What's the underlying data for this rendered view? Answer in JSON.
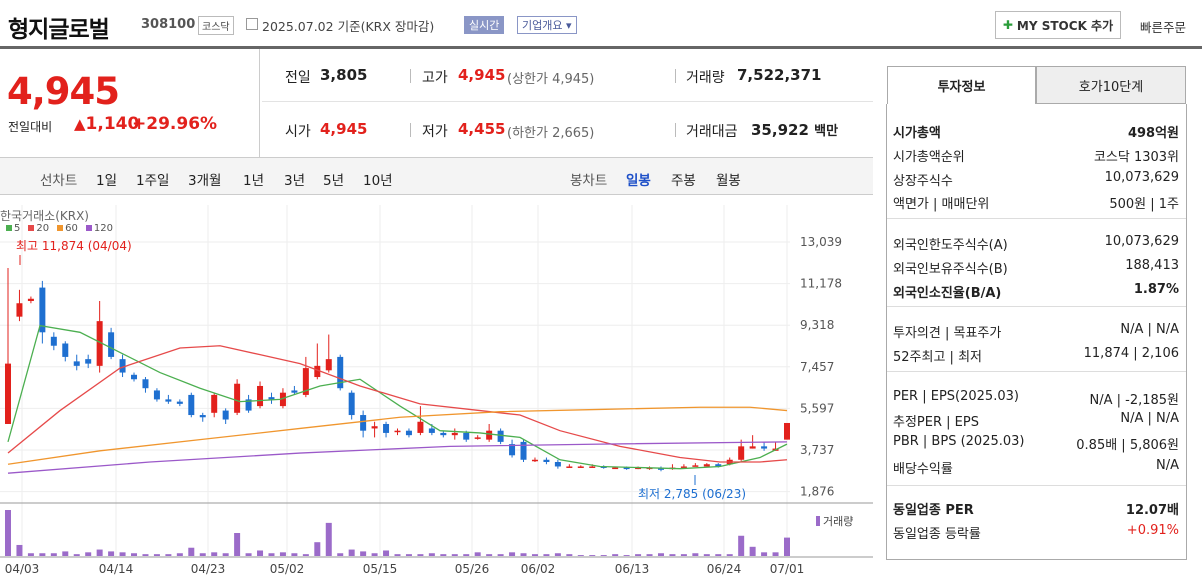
{
  "header": {
    "name": "형지글로벌",
    "code": "308100",
    "market": "코스닥",
    "date": "2025.07.02",
    "date_suffix": "기준(KRX 장마감)",
    "realtime": "실시간",
    "company": "기업개요",
    "mystock": "MY STOCK 추가",
    "quick": "빠른주문"
  },
  "price": {
    "current": "4,945",
    "cmp_label": "전일대비",
    "change": "1,140",
    "pct": "+29.96%"
  },
  "stats": {
    "prev_l": "전일",
    "prev": "3,805",
    "high_l": "고가",
    "high": "4,945",
    "high_limit": "(상한가 4,945)",
    "vol_l": "거래량",
    "vol": "7,522,371",
    "open_l": "시가",
    "open": "4,945",
    "low_l": "저가",
    "low": "4,455",
    "low_limit": "(하한가 2,665)",
    "amt_l": "거래대금",
    "amt": "35,922",
    "amt_unit": "백만"
  },
  "chartbar": {
    "line_label": "선차트",
    "periods": [
      "1일",
      "1주일",
      "3개월",
      "1년",
      "3년",
      "5년",
      "10년"
    ],
    "candle_label": "봉차트",
    "candles": [
      "일봉",
      "주봉",
      "월봉"
    ]
  },
  "chart_data": {
    "type": "candlestick",
    "source": "한국거래소(KRX)",
    "ma_legend": [
      {
        "name": "5",
        "color": "#4caf50"
      },
      {
        "name": "20",
        "color": "#e64a4a"
      },
      {
        "name": "60",
        "color": "#f0962e"
      },
      {
        "name": "120",
        "color": "#9b59c9"
      }
    ],
    "y_ticks": [
      "13,039",
      "11,178",
      "9,318",
      "7,457",
      "5,597",
      "3,737",
      "1,876"
    ],
    "x_ticks": [
      "04/03",
      "04/14",
      "04/23",
      "05/02",
      "05/15",
      "05/26",
      "06/02",
      "06/13",
      "06/24",
      "07/01"
    ],
    "high_note": "최고 11,874 (04/04)",
    "low_note": "최저 2,785 (06/23)",
    "volume_label": "거래량"
  },
  "right": {
    "tab1": "투자정보",
    "tab2": "호가10단계",
    "rows": [
      {
        "k": "시가총액",
        "v": "498억원",
        "bold": true
      },
      {
        "k": "시가총액순위",
        "v": "코스닥 1303위"
      },
      {
        "k": "상장주식수",
        "v": "10,073,629"
      },
      {
        "k": "액면가 | 매매단위",
        "v": "500원 | 1주"
      },
      {
        "k": "외국인한도주식수(A)",
        "v": "10,073,629"
      },
      {
        "k": "외국인보유주식수(B)",
        "v": "188,413"
      },
      {
        "k": "외국인소진율(B/A)",
        "v": "1.87%",
        "bold": true
      },
      {
        "k": "투자의견 | 목표주가",
        "v": "N/A | N/A"
      },
      {
        "k": "52주최고 | 최저",
        "v": "11,874 | 2,106"
      },
      {
        "k": "PER | EPS(2025.03)",
        "v": "N/A | -2,185원"
      },
      {
        "k": "추정PER | EPS",
        "v": "N/A | N/A"
      },
      {
        "k": "PBR | BPS (2025.03)",
        "v": "0.85배 | 5,806원"
      },
      {
        "k": "배당수익률",
        "v": "N/A"
      },
      {
        "k": "동일업종 PER",
        "v": "12.07배",
        "bold": true
      },
      {
        "k": "동일업종 등락률",
        "v": "+0.91%",
        "red": true
      }
    ]
  },
  "colors": {
    "up": "#e2211c",
    "down": "#1e6fd0"
  }
}
